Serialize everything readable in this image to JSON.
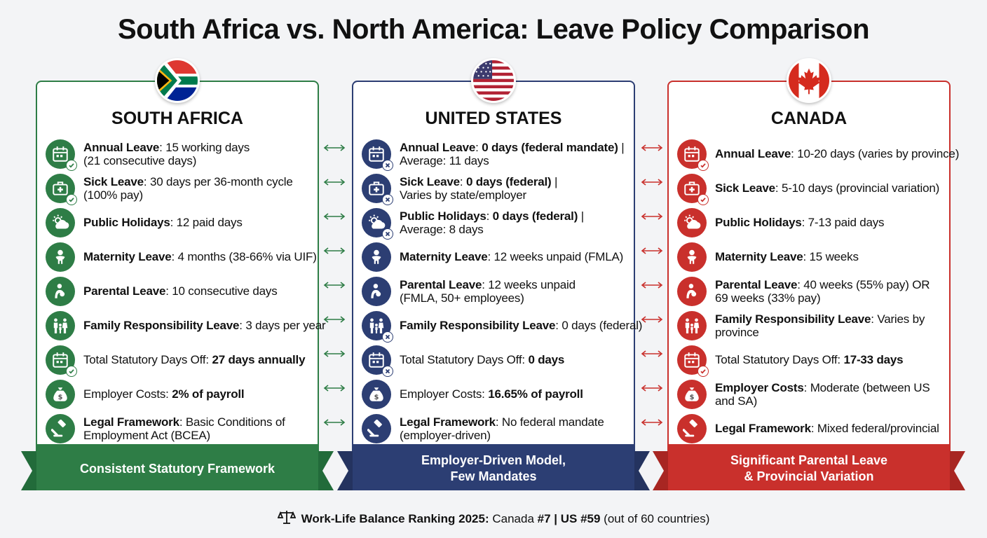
{
  "title": "South Africa vs. North America: Leave Policy Comparison",
  "colors": {
    "south_africa": "#2e7d46",
    "united_states": "#2c3e73",
    "canada": "#c9302c"
  },
  "columns": [
    {
      "key": "za",
      "country": "SOUTH AFRICA",
      "flag_icon": "south-africa-flag-icon",
      "ribbon": [
        "Consistent Statutory Framework"
      ],
      "rows": [
        {
          "icon": "calendar-check-icon",
          "bold": "Annual Leave",
          "sep": ": ",
          "value": "15 working days",
          "value2": "(21 consecutive days)"
        },
        {
          "icon": "medical-kit-check-icon",
          "bold": "Sick Leave",
          "sep": ": ",
          "value": "30 days per 36-month cycle",
          "value2": "(100% pay)"
        },
        {
          "icon": "sun-cloud-icon",
          "bold": "Public Holidays",
          "sep": ": ",
          "value": "12 paid days",
          "value2": ""
        },
        {
          "icon": "baby-icon",
          "bold": "Maternity Leave",
          "sep": ": ",
          "value": "4 months (38-66% via UIF)",
          "value2": ""
        },
        {
          "icon": "parent-child-icon",
          "bold": "Parental Leave",
          "sep": ": ",
          "value": "10 consecutive days",
          "value2": ""
        },
        {
          "icon": "family-icon",
          "bold": "Family Responsibility Leave",
          "sep": ": ",
          "value": "3 days per year",
          "value2": ""
        },
        {
          "icon": "calendar-check-icon",
          "plain": "Total Statutory Days Off: ",
          "strong": "27 days annually"
        },
        {
          "icon": "money-bag-icon",
          "plain": "Employer Costs: ",
          "strong": "2% of payroll"
        },
        {
          "icon": "gavel-icon",
          "bold": "Legal Framework",
          "sep": ": ",
          "value": "Basic Conditions of",
          "value2": "Employment Act (BCEA)"
        }
      ]
    },
    {
      "key": "us",
      "country": "UNITED STATES",
      "flag_icon": "united-states-flag-icon",
      "ribbon": [
        "Employer-Driven Model,",
        "Few Mandates"
      ],
      "rows": [
        {
          "icon": "calendar-x-icon",
          "bold": "Annual Leave",
          "sep": ": ",
          "strong": "0 days (federal mandate)",
          "value": " |",
          "value2": "Average: 11 days"
        },
        {
          "icon": "medical-kit-x-icon",
          "bold": "Sick Leave",
          "sep": ": ",
          "strong": "0 days (federal)",
          "value": " |",
          "value2": "Varies by state/employer"
        },
        {
          "icon": "sun-cloud-x-icon",
          "bold": "Public Holidays",
          "sep": ": ",
          "strong": "0 days (federal)",
          "value": " |",
          "value2": "Average: 8 days"
        },
        {
          "icon": "baby-icon",
          "bold": "Maternity Leave",
          "sep": ": ",
          "value": "12 weeks unpaid (FMLA)",
          "value2": ""
        },
        {
          "icon": "parent-child-icon",
          "bold": "Parental Leave",
          "sep": ": ",
          "value": "12 weeks unpaid",
          "value2": "(FMLA, 50+ employees)"
        },
        {
          "icon": "family-x-icon",
          "bold": "Family Responsibility Leave",
          "sep": ": ",
          "value": "0 days (federal)",
          "value2": ""
        },
        {
          "icon": "calendar-x-icon",
          "plain": "Total Statutory Days Off: ",
          "strong": "0 days"
        },
        {
          "icon": "money-bag-icon",
          "plain": "Employer Costs: ",
          "strong": "16.65% of payroll"
        },
        {
          "icon": "gavel-icon",
          "bold": "Legal Framework",
          "sep": ": ",
          "value": "No federal mandate",
          "value2": "(employer-driven)"
        }
      ]
    },
    {
      "key": "ca",
      "country": "CANADA",
      "flag_icon": "canada-flag-icon",
      "ribbon": [
        "Significant Parental Leave",
        "& Provincial Variation"
      ],
      "rows": [
        {
          "icon": "calendar-check-icon",
          "bold": "Annual Leave",
          "sep": ": ",
          "value": "10-20 days (varies by province)",
          "value2": ""
        },
        {
          "icon": "medical-kit-check-icon",
          "bold": "Sick Leave",
          "sep": ": ",
          "value": "5-10 days (provincial variation)",
          "value2": ""
        },
        {
          "icon": "sun-cloud-icon",
          "bold": "Public Holidays",
          "sep": ": ",
          "value": "7-13 paid days",
          "value2": ""
        },
        {
          "icon": "baby-icon",
          "bold": "Maternity Leave",
          "sep": ": ",
          "value": "15 weeks",
          "value2": ""
        },
        {
          "icon": "parent-child-icon",
          "bold": "Parental Leave",
          "sep": ": ",
          "value": "40 weeks (55% pay) OR",
          "value2": "69 weeks (33% pay)"
        },
        {
          "icon": "family-icon",
          "bold": "Family Responsibility Leave",
          "sep": ": ",
          "value": "Varies by",
          "value2": "province"
        },
        {
          "icon": "calendar-check-icon",
          "plain": "Total Statutory Days Off: ",
          "strong": "17-33 days"
        },
        {
          "icon": "money-bag-icon",
          "bold": "Employer Costs",
          "sep": ": ",
          "value": "Moderate (between US",
          "value2": "and SA)"
        },
        {
          "icon": "gavel-icon",
          "bold": "Legal Framework",
          "sep": ": ",
          "value": "Mixed federal/provincial",
          "value2": ""
        }
      ]
    }
  ],
  "footer": {
    "icon": "balance-scale-icon",
    "label": "Work-Life Balance Ranking 2025:",
    "canada": " Canada ",
    "canada_rank": "#7",
    "sep": " | ",
    "us": "US #59",
    "tail": " (out of 60 countries)"
  }
}
